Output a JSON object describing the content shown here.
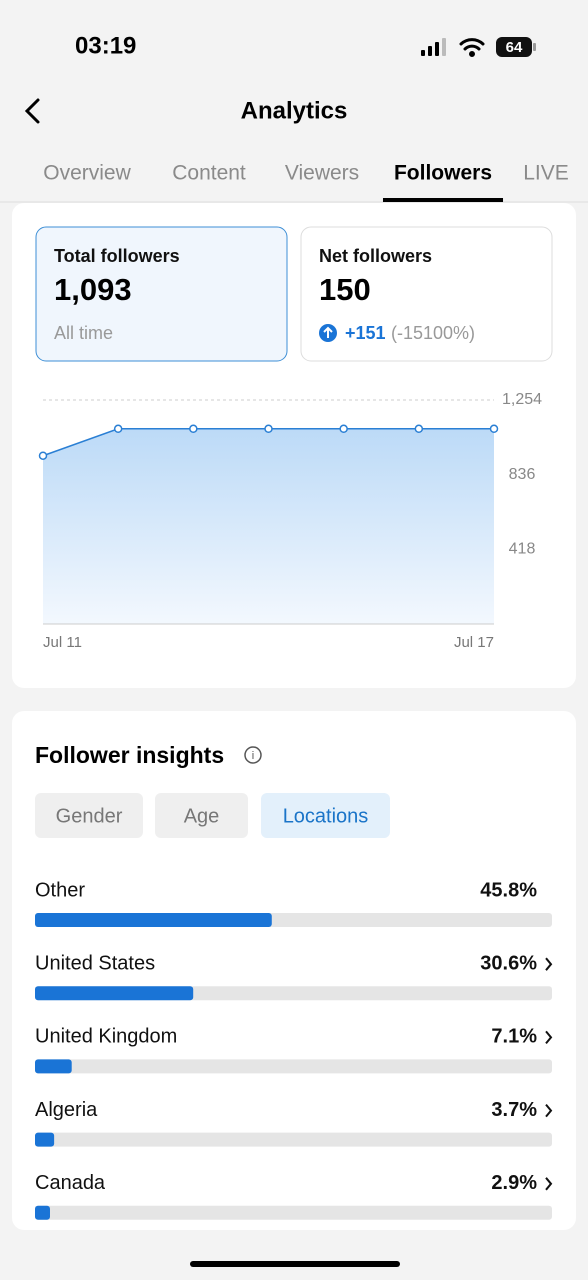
{
  "status_bar": {
    "time": "03:19",
    "battery": "64"
  },
  "header": {
    "title": "Analytics"
  },
  "tabs": {
    "items": [
      "Overview",
      "Content",
      "Viewers",
      "Followers",
      "LIVE"
    ],
    "active": 3
  },
  "cards": [
    {
      "title": "Total followers",
      "value": "1,093",
      "note": "All time"
    },
    {
      "title": "Net followers",
      "value": "150",
      "change": "+151",
      "change_pct": "(-15100%)"
    }
  ],
  "insights": {
    "title": "Follower insights",
    "filters": [
      "Gender",
      "Age",
      "Locations"
    ],
    "active": 2
  },
  "chart_data": [
    {
      "type": "line",
      "categories": [
        "Jul 11",
        null,
        null,
        null,
        null,
        null,
        "Jul 17"
      ],
      "values": [
        942,
        1093,
        1093,
        1093,
        1093,
        1093,
        1093
      ],
      "color": "#2a7fd4",
      "ylim": [
        0,
        1254
      ],
      "yticks": [
        {
          "value": 418,
          "label": "418"
        },
        {
          "value": 836,
          "label": "836"
        },
        {
          "value": 1254,
          "label": "1,254"
        }
      ],
      "grid": true
    },
    {
      "type": "hbar",
      "categories": [
        "Other",
        "United States",
        "United Kingdom",
        "Algeria",
        "Canada"
      ],
      "values": [
        45.8,
        30.6,
        7.1,
        3.7,
        2.9
      ],
      "value_labels": [
        "45.8%",
        "30.6%",
        "7.1%",
        "3.7%",
        "2.9%"
      ],
      "color": "#1a74d6",
      "xlim": [
        0,
        100
      ]
    }
  ]
}
